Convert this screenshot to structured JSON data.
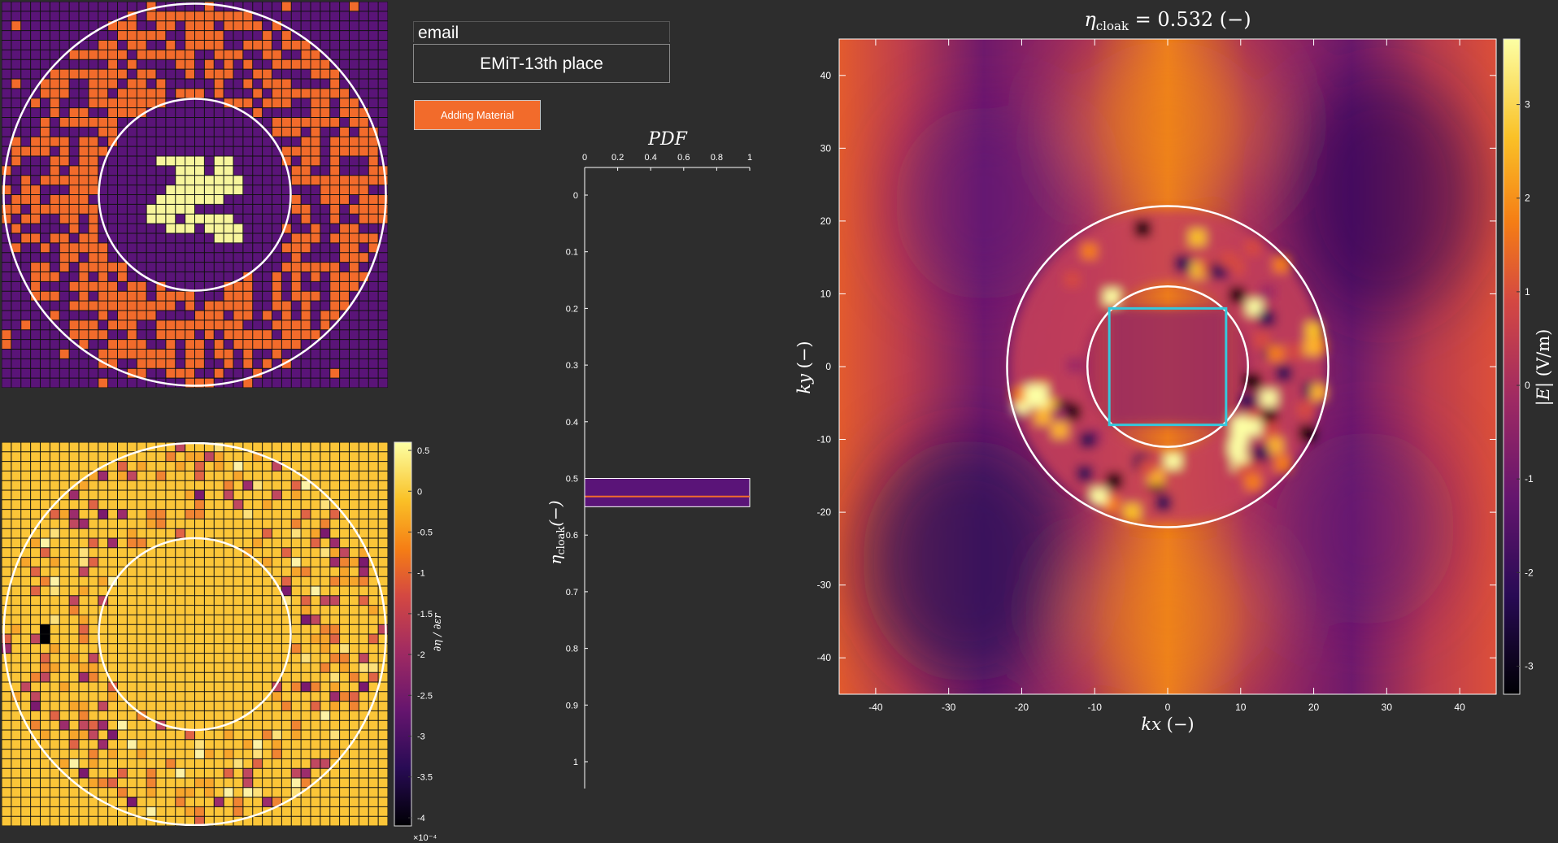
{
  "form": {
    "name_label": "email",
    "team_value": "EMiT-13th place",
    "action_button_label": "Adding Material"
  },
  "colors": {
    "background": "#2d2d2d",
    "accent_orange": "#f26b2b",
    "material_purple": "#5a1478",
    "core_yellow": "#f7f59c",
    "grid_line": "#111111",
    "ring": "#ffffff",
    "object_box": "#35c8dc"
  },
  "icons": [],
  "chart_data": [
    {
      "type": "heatmap",
      "grid": "40x40",
      "title": "",
      "xlabel": "",
      "ylabel": "",
      "series": [
        {
          "values": [
            "purple",
            "orange",
            "light-yellow"
          ]
        }
      ]
    },
    {
      "type": "heatmap",
      "grid": "40x40",
      "title": "",
      "xlabel": "",
      "ylabel": "",
      "colorbar": {
        "ticks": [
          "0.5",
          "0",
          "-0.5",
          "-1",
          "-1.5",
          "-2",
          "-2.5",
          "-3",
          "-3.5",
          "-4"
        ],
        "range": [
          -4.1,
          0.6
        ],
        "label": "∂η/∂εr",
        "exponent": "×10⁻⁴"
      }
    },
    {
      "type": "bar",
      "title": "PDF",
      "xticks": [
        "0",
        "0.2",
        "0.4",
        "0.6",
        "0.8",
        "1"
      ],
      "xlim": [
        0,
        1
      ],
      "yticks": [
        "0",
        "0.1",
        "0.2",
        "0.3",
        "0.4",
        "0.5",
        "0.6",
        "0.7",
        "0.8",
        "0.9",
        "1"
      ],
      "ylim": [
        0,
        1.05
      ],
      "ylabel": "ηcloak(−)",
      "bin": [
        0.5,
        0.55
      ],
      "marker": 0.532,
      "series": [
        {
          "values": [
            1
          ]
        }
      ]
    },
    {
      "type": "heatmap",
      "title": "ηcloak = 0.532 (−)",
      "xlabel": "kx (−)",
      "ylabel": "ky (−)",
      "xlim": [
        -45,
        45
      ],
      "ylim": [
        -45,
        45
      ],
      "xticks": [
        "-40",
        "-30",
        "-20",
        "-10",
        "0",
        "10",
        "20",
        "30",
        "40"
      ],
      "yticks": [
        "40",
        "30",
        "20",
        "10",
        "0",
        "-10",
        "-20",
        "-30",
        "-40"
      ],
      "colorbar": {
        "ticks": [
          "3",
          "2",
          "1",
          "0",
          "-1",
          "-2",
          "-3"
        ],
        "range": [
          -3.3,
          3.7
        ],
        "label": "|E| (V/m)"
      },
      "rings": {
        "outer_radius": 22,
        "inner_radius": 11
      },
      "object_box": {
        "x": [
          -8,
          8
        ],
        "y": [
          -8,
          8
        ]
      }
    }
  ]
}
